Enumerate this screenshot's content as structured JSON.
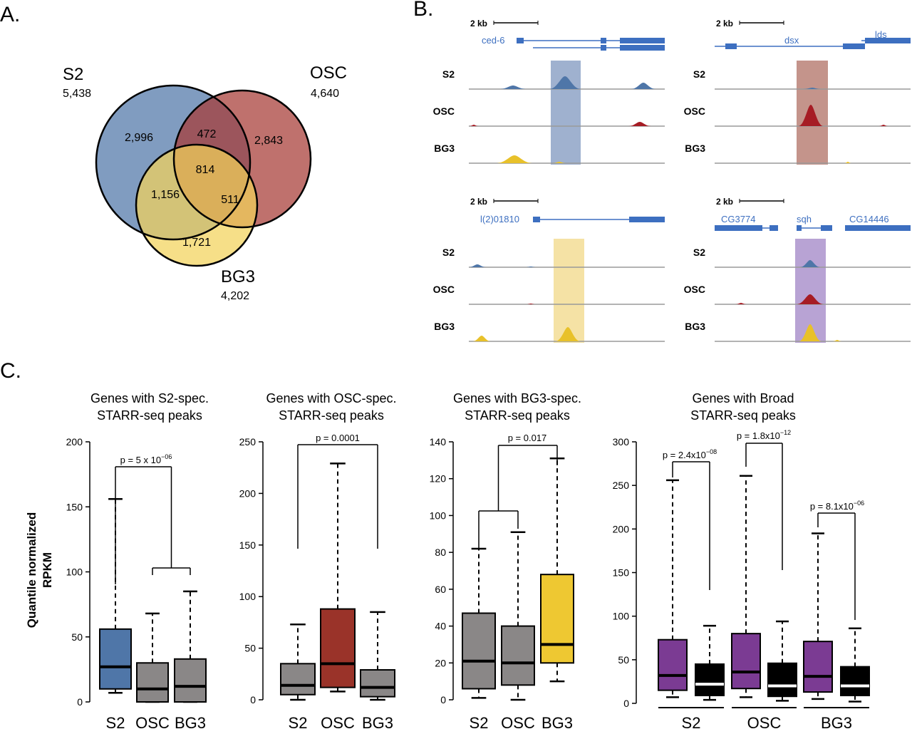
{
  "panels": {
    "a": "A.",
    "b": "B.",
    "c": "C."
  },
  "venn": {
    "sets": [
      {
        "name": "S2",
        "total": "5,438",
        "color": "#4f76a8"
      },
      {
        "name": "OSC",
        "total": "4,640",
        "color": "#a63a34"
      },
      {
        "name": "BG3",
        "total": "4,202",
        "color": "#f2d35a"
      }
    ],
    "regions": {
      "s2_only": "2,996",
      "osc_only": "2,843",
      "bg3_only": "1,721",
      "s2_osc": "472",
      "s2_bg3": "1,156",
      "osc_bg3": "511",
      "all": "814"
    }
  },
  "tracks": {
    "scalebar": "2 kb",
    "row_labels": [
      "S2",
      "OSC",
      "BG3"
    ],
    "colors": {
      "S2": "#4f76a8",
      "OSC": "#a61c24",
      "BG3": "#e8c12a",
      "gene": "#3d6fc0"
    },
    "loci": [
      {
        "genes": [
          "ced-6"
        ],
        "highlight": "#9fb1cf"
      },
      {
        "genes": [
          "dsx",
          "lds"
        ],
        "highlight": "#c4948b"
      },
      {
        "genes": [
          "l(2)01810"
        ],
        "highlight": "#f5e2a5"
      },
      {
        "genes": [
          "CG3774",
          "sqh",
          "CG14446"
        ],
        "highlight": "#b8a3d4"
      }
    ]
  },
  "ylabel": [
    "Quantile normalized",
    "RPKM"
  ],
  "chart_data": [
    {
      "type": "box",
      "title": [
        "Genes with S2-spec.",
        "STARR-seq peaks"
      ],
      "categories": [
        "S2",
        "OSC",
        "BG3"
      ],
      "ylim": [
        0,
        200
      ],
      "yticks": [
        0,
        50,
        100,
        150,
        200
      ],
      "colors": [
        "#4f76a8",
        "#8a8787",
        "#8a8787"
      ],
      "boxes": [
        {
          "min": 7,
          "q1": 10,
          "median": 27,
          "q3": 56,
          "max": 156
        },
        {
          "min": 0,
          "q1": 0,
          "median": 10,
          "q3": 30,
          "max": 68
        },
        {
          "min": 0,
          "q1": 0,
          "median": 12,
          "q3": 33,
          "max": 85
        }
      ],
      "pvalues": [
        {
          "text": "p = 5 x 10",
          "exp": "−06"
        }
      ]
    },
    {
      "type": "box",
      "title": [
        "Genes with OSC-spec.",
        "STARR-seq peaks"
      ],
      "categories": [
        "S2",
        "OSC",
        "BG3"
      ],
      "ylim": [
        0,
        250
      ],
      "yticks": [
        0,
        50,
        100,
        150,
        200,
        250
      ],
      "colors": [
        "#8a8787",
        "#9a3329",
        "#8a8787"
      ],
      "boxes": [
        {
          "min": 0,
          "q1": 5,
          "median": 14,
          "q3": 35,
          "max": 73
        },
        {
          "min": 8,
          "q1": 12,
          "median": 35,
          "q3": 88,
          "max": 229
        },
        {
          "min": 0,
          "q1": 3,
          "median": 12,
          "q3": 29,
          "max": 85
        }
      ],
      "pvalues": [
        {
          "text": "p = 0.0001",
          "exp": ""
        }
      ]
    },
    {
      "type": "box",
      "title": [
        "Genes with BG3-spec.",
        "STARR-seq peaks"
      ],
      "categories": [
        "S2",
        "OSC",
        "BG3"
      ],
      "ylim": [
        0,
        140
      ],
      "yticks": [
        0,
        20,
        40,
        60,
        80,
        100,
        120,
        140
      ],
      "colors": [
        "#8a8787",
        "#8a8787",
        "#eec832"
      ],
      "boxes": [
        {
          "min": 1,
          "q1": 6,
          "median": 21,
          "q3": 47,
          "max": 82
        },
        {
          "min": 0,
          "q1": 8,
          "median": 20,
          "q3": 40,
          "max": 91
        },
        {
          "min": 10,
          "q1": 20,
          "median": 30,
          "q3": 68,
          "max": 131
        }
      ],
      "pvalues": [
        {
          "text": "p = 0.017",
          "exp": ""
        }
      ]
    },
    {
      "type": "box",
      "title": [
        "Genes with Broad",
        "STARR-seq peaks"
      ],
      "categories": [
        "S2",
        "OSC",
        "BG3"
      ],
      "ylim": [
        0,
        300
      ],
      "yticks": [
        0,
        50,
        100,
        150,
        200,
        250,
        300
      ],
      "colors": [
        "#7b3b93",
        "#000000",
        "#7b3b93",
        "#000000",
        "#7b3b93",
        "#000000"
      ],
      "boxes": [
        {
          "min": 7,
          "q1": 15,
          "median": 32,
          "q3": 73,
          "max": 256
        },
        {
          "min": 4,
          "q1": 9,
          "median": 22,
          "q3": 45,
          "max": 89
        },
        {
          "min": 7,
          "q1": 17,
          "median": 36,
          "q3": 80,
          "max": 261
        },
        {
          "min": 3,
          "q1": 8,
          "median": 20,
          "q3": 46,
          "max": 94
        },
        {
          "min": 5,
          "q1": 13,
          "median": 31,
          "q3": 71,
          "max": 195
        },
        {
          "min": 2,
          "q1": 9,
          "median": 20,
          "q3": 42,
          "max": 86
        }
      ],
      "pvalues": [
        {
          "text": "p = 2.4x10",
          "exp": "−08"
        },
        {
          "text": "p = 1.8x10",
          "exp": "−12"
        },
        {
          "text": "p = 8.1x10",
          "exp": "−06"
        }
      ]
    }
  ]
}
